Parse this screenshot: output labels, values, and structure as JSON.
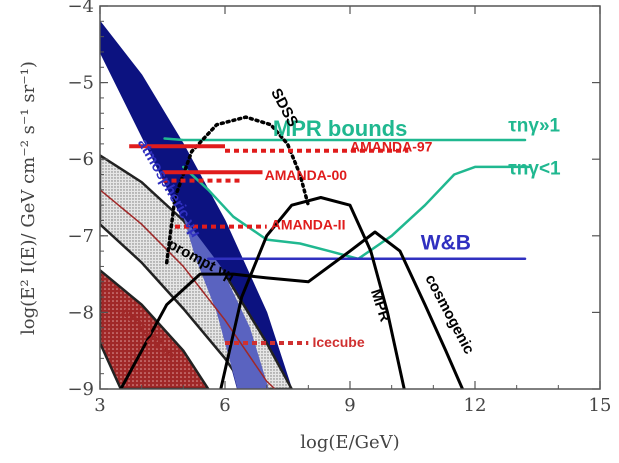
{
  "chart_data": {
    "type": "line",
    "title": "",
    "xlabel": "log(E/GeV)",
    "ylabel": "log(E² I(E)/ GeV cm⁻² s⁻¹ sr⁻¹)",
    "xlim": [
      3,
      15
    ],
    "ylim": [
      -9,
      -4
    ],
    "x_ticks": [
      3,
      6,
      9,
      12,
      15
    ],
    "x_tick_labels": [
      "3",
      "6",
      "9",
      "12",
      "15"
    ],
    "y_ticks": [
      -9,
      -8,
      -7,
      -6,
      -5,
      -4
    ],
    "y_tick_labels": [
      "−9",
      "−8",
      "−7",
      "−6",
      "−5",
      "−4"
    ],
    "grid": false,
    "legend": "none",
    "colors": {
      "atmospheric": "#0c1280",
      "atmospheric_light": "#5a63c0",
      "mpr_bounds": "#20b890",
      "amanda": "#e01c1c",
      "wb": "#3030c0",
      "curves": "#000000",
      "prompt_grey": "#bfbfbf",
      "prompt_red": "#a02828",
      "icecube": "#d03030"
    },
    "bands": [
      {
        "name": "atmospheric νμ",
        "label": "atmospheric νμ",
        "upper": [
          [
            3.0,
            -4.2
          ],
          [
            4.0,
            -4.9
          ],
          [
            5.0,
            -5.8
          ],
          [
            6.0,
            -6.8
          ],
          [
            7.0,
            -8.0
          ],
          [
            7.6,
            -9.0
          ]
        ],
        "lower": [
          [
            3.0,
            -4.6
          ],
          [
            4.0,
            -5.7
          ],
          [
            5.0,
            -6.8
          ],
          [
            5.8,
            -8.0
          ],
          [
            6.3,
            -9.0
          ]
        ]
      },
      {
        "name": "prompt νμ",
        "label": "prompt νμ",
        "upper": [
          [
            3.0,
            -5.95
          ],
          [
            4.0,
            -6.3
          ],
          [
            5.0,
            -6.8
          ],
          [
            6.0,
            -7.5
          ],
          [
            7.0,
            -8.4
          ],
          [
            7.6,
            -9.0
          ]
        ],
        "lower": [
          [
            3.0,
            -6.85
          ],
          [
            4.0,
            -7.35
          ],
          [
            5.0,
            -7.95
          ],
          [
            6.0,
            -8.6
          ],
          [
            6.5,
            -9.0
          ]
        ]
      },
      {
        "name": "prompt ντ",
        "label": "prompt ντ",
        "upper": [
          [
            3.0,
            -7.45
          ],
          [
            4.0,
            -7.9
          ],
          [
            5.0,
            -8.5
          ],
          [
            5.6,
            -9.0
          ]
        ],
        "lower": [
          [
            3.0,
            -8.4
          ],
          [
            3.5,
            -9.0
          ]
        ]
      }
    ],
    "series": [
      {
        "name": "MPR bounds",
        "style": "line",
        "label_position": [
          [
            4.55,
            -5.73
          ],
          [
            5.0,
            -5.75
          ],
          [
            7.0,
            -5.75
          ],
          [
            9.0,
            -5.75
          ],
          [
            11.0,
            -5.75
          ],
          [
            13.2,
            -5.75
          ]
        ]
      },
      {
        "name": "MPR bounds τnγ<1",
        "style": "line",
        "label_position": [
          [
            5.0,
            -6.1
          ],
          [
            5.6,
            -6.4
          ],
          [
            6.2,
            -6.75
          ],
          [
            7.0,
            -7.05
          ],
          [
            7.8,
            -7.1
          ],
          [
            8.5,
            -7.2
          ],
          [
            9.2,
            -7.3
          ],
          [
            10.0,
            -7.0
          ],
          [
            10.8,
            -6.6
          ],
          [
            11.5,
            -6.2
          ],
          [
            12.0,
            -6.1
          ],
          [
            13.3,
            -6.1
          ]
        ]
      },
      {
        "name": "W&B",
        "style": "line",
        "points": [
          [
            5.6,
            -7.3
          ],
          [
            13.2,
            -7.3
          ]
        ]
      },
      {
        "name": "SDSS",
        "style": "dotted",
        "points": [
          [
            4.6,
            -7.35
          ],
          [
            4.8,
            -6.5
          ],
          [
            5.2,
            -5.9
          ],
          [
            5.8,
            -5.55
          ],
          [
            6.5,
            -5.45
          ],
          [
            7.1,
            -5.55
          ],
          [
            7.5,
            -5.8
          ],
          [
            7.8,
            -6.2
          ],
          [
            8.0,
            -6.6
          ]
        ]
      },
      {
        "name": "MPR",
        "points": [
          [
            5.9,
            -9.0
          ],
          [
            6.4,
            -7.8
          ],
          [
            7.0,
            -7.0
          ],
          [
            7.6,
            -6.6
          ],
          [
            8.3,
            -6.5
          ],
          [
            9.0,
            -6.6
          ],
          [
            9.5,
            -7.2
          ],
          [
            9.9,
            -8.0
          ],
          [
            10.3,
            -9.0
          ]
        ]
      },
      {
        "name": "cosmogenic",
        "points": [
          [
            3.5,
            -9.0
          ],
          [
            4.0,
            -8.5
          ],
          [
            4.6,
            -7.9
          ],
          [
            5.4,
            -7.5
          ],
          [
            6.2,
            -7.5
          ],
          [
            7.0,
            -7.55
          ],
          [
            8.0,
            -7.6
          ],
          [
            9.0,
            -7.2
          ],
          [
            9.6,
            -6.95
          ],
          [
            10.2,
            -7.2
          ],
          [
            10.8,
            -7.9
          ],
          [
            11.3,
            -8.5
          ],
          [
            11.7,
            -9.0
          ]
        ]
      }
    ],
    "limits": [
      {
        "name": "AMANDA-97",
        "solid": [
          [
            3.7,
            -5.83
          ],
          [
            6.0,
            -5.83
          ]
        ],
        "dotted": [
          [
            6.0,
            -5.89
          ],
          [
            10.4,
            -5.89
          ]
        ],
        "label": "AMANDA-97"
      },
      {
        "name": "AMANDA-00",
        "solid": [
          [
            4.5,
            -6.17
          ],
          [
            6.9,
            -6.17
          ]
        ],
        "dotted": [
          [
            4.5,
            -6.28
          ],
          [
            6.4,
            -6.28
          ]
        ],
        "label": "AMANDA-00"
      },
      {
        "name": "AMANDA-II",
        "dotted": [
          [
            4.8,
            -6.88
          ],
          [
            7.0,
            -6.88
          ]
        ],
        "label": "AMANDA-II"
      },
      {
        "name": "Icecube",
        "dotted": [
          [
            6.0,
            -8.4
          ],
          [
            8.0,
            -8.4
          ]
        ],
        "label": "Icecube"
      }
    ],
    "annotations": [
      {
        "text": "MPR bounds",
        "x": 7.15,
        "y": -5.7,
        "color": "mpr_bounds"
      },
      {
        "text": "τnγ»1",
        "x": 12.8,
        "y": -5.64,
        "color": "mpr_bounds"
      },
      {
        "text": "τnγ<1",
        "x": 12.8,
        "y": -6.2,
        "color": "mpr_bounds"
      },
      {
        "text": "W&B",
        "x": 10.7,
        "y": -7.18,
        "color": "wb"
      },
      {
        "text": "SDSS",
        "x": 7.1,
        "y": -5.12,
        "color": "curves",
        "rotate": 62
      },
      {
        "text": "MPR",
        "x": 9.5,
        "y": -7.72,
        "color": "curves",
        "rotate": 72
      },
      {
        "text": "cosmogenic",
        "x": 10.8,
        "y": -7.55,
        "color": "curves",
        "rotate": 62
      },
      {
        "text": "atmospheric νμ",
        "x": 3.9,
        "y": -5.78,
        "color": "wb",
        "rotate": 60
      },
      {
        "text": "prompt νμ",
        "x": 4.6,
        "y": -7.15,
        "color": "curves",
        "rotate": 28
      },
      {
        "text": "prompt ντ",
        "x": 3.5,
        "y": -8.0,
        "color": "prompt_red",
        "rotate": 45
      },
      {
        "text": "AMANDA-97",
        "x": 9.0,
        "y": -5.9,
        "color": "amanda"
      },
      {
        "text": "AMANDA-00",
        "x": 6.95,
        "y": -6.27,
        "color": "amanda"
      },
      {
        "text": "AMANDA-II",
        "x": 7.1,
        "y": -6.92,
        "color": "amanda"
      },
      {
        "text": "Icecube",
        "x": 8.1,
        "y": -8.45,
        "color": "icecube"
      }
    ]
  }
}
